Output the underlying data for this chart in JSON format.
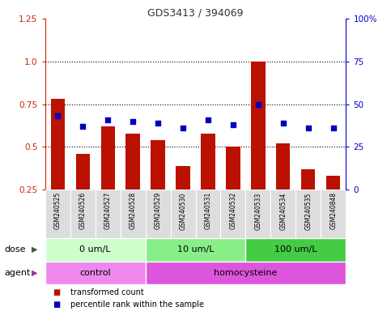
{
  "title": "GDS3413 / 394069",
  "samples": [
    "GSM240525",
    "GSM240526",
    "GSM240527",
    "GSM240528",
    "GSM240529",
    "GSM240530",
    "GSM240531",
    "GSM240532",
    "GSM240533",
    "GSM240534",
    "GSM240535",
    "GSM240848"
  ],
  "transformed_count": [
    0.78,
    0.46,
    0.62,
    0.58,
    0.54,
    0.39,
    0.58,
    0.5,
    1.0,
    0.52,
    0.37,
    0.33
  ],
  "percentile_rank_pct": [
    43,
    37,
    41,
    40,
    39,
    36,
    41,
    38,
    50,
    39,
    36,
    36
  ],
  "ylim_left": [
    0.25,
    1.25
  ],
  "ylim_right": [
    0,
    100
  ],
  "yticks_left": [
    0.25,
    0.5,
    0.75,
    1.0,
    1.25
  ],
  "yticks_right": [
    0,
    25,
    50,
    75,
    100
  ],
  "hlines": [
    0.5,
    0.75,
    1.0
  ],
  "bar_color": "#bb1100",
  "dot_color": "#0000bb",
  "dose_groups": [
    {
      "label": "0 um/L",
      "start": 0,
      "end": 4,
      "color": "#ccffcc"
    },
    {
      "label": "10 um/L",
      "start": 4,
      "end": 8,
      "color": "#88ee88"
    },
    {
      "label": "100 um/L",
      "start": 8,
      "end": 12,
      "color": "#44cc44"
    }
  ],
  "agent_groups": [
    {
      "label": "control",
      "start": 0,
      "end": 4,
      "color": "#ee88ee"
    },
    {
      "label": "homocysteine",
      "start": 4,
      "end": 12,
      "color": "#dd55dd"
    }
  ],
  "dose_label": "dose",
  "agent_label": "agent",
  "legend_bar_label": "transformed count",
  "legend_dot_label": "percentile rank within the sample",
  "title_color": "#333333",
  "left_axis_color": "#cc2200",
  "right_axis_color": "#0000cc"
}
